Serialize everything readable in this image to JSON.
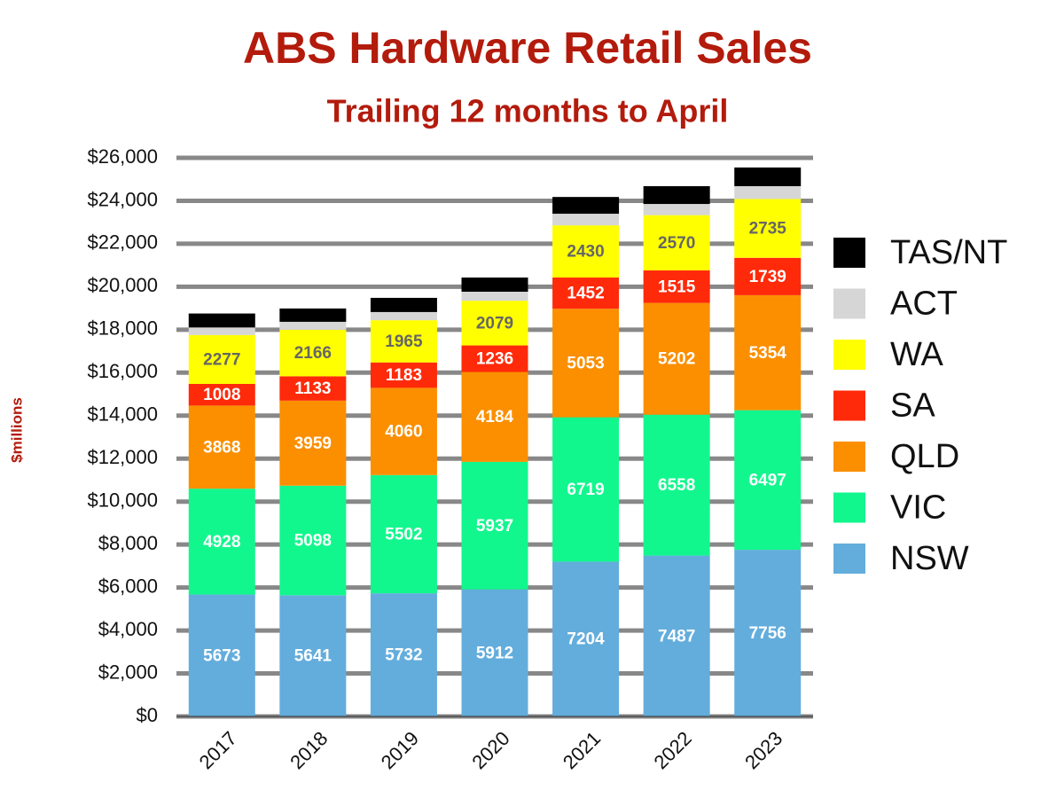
{
  "chart_data": {
    "type": "stacked_bar",
    "title": "ABS Hardware Retail Sales",
    "subtitle": "Trailing 12 months to April",
    "y_label": "$millions",
    "categories": [
      "2017",
      "2018",
      "2019",
      "2020",
      "2021",
      "2022",
      "2023"
    ],
    "series": [
      {
        "name": "NSW",
        "color": "#63addc",
        "data_labels": true,
        "values": [
          5673,
          5641,
          5732,
          5912,
          7204,
          7487,
          7756
        ]
      },
      {
        "name": "VIC",
        "color": "#12f78d",
        "data_labels": true,
        "values": [
          4928,
          5098,
          5502,
          5937,
          6719,
          6558,
          6497
        ]
      },
      {
        "name": "QLD",
        "color": "#fb8f00",
        "data_labels": true,
        "values": [
          3868,
          3959,
          4060,
          4184,
          5053,
          5202,
          5354
        ]
      },
      {
        "name": "SA",
        "color": "#ff2a0a",
        "data_labels": true,
        "values": [
          1008,
          1133,
          1183,
          1236,
          1452,
          1515,
          1739
        ]
      },
      {
        "name": "WA",
        "color": "#ffff00",
        "data_labels": true,
        "values": [
          2277,
          2166,
          1965,
          2079,
          2430,
          2570,
          2735
        ]
      },
      {
        "name": "ACT",
        "color": "#d6d6d6",
        "data_labels": false,
        "values": [
          350,
          370,
          380,
          420,
          540,
          520,
          600
        ]
      },
      {
        "name": "TAS/NT",
        "color": "#000000",
        "data_labels": false,
        "values": [
          650,
          620,
          660,
          660,
          780,
          830,
          870
        ]
      }
    ],
    "ylim": [
      0,
      26000
    ],
    "yticks": [
      {
        "value": 0,
        "label": "$0"
      },
      {
        "value": 2000,
        "label": "$2,000"
      },
      {
        "value": 4000,
        "label": "$4,000"
      },
      {
        "value": 6000,
        "label": "$6,000"
      },
      {
        "value": 8000,
        "label": "$8,000"
      },
      {
        "value": 10000,
        "label": "$10,000"
      },
      {
        "value": 12000,
        "label": "$12,000"
      },
      {
        "value": 14000,
        "label": "$14,000"
      },
      {
        "value": 16000,
        "label": "$16,000"
      },
      {
        "value": 18000,
        "label": "$18,000"
      },
      {
        "value": 20000,
        "label": "$20,000"
      },
      {
        "value": 22000,
        "label": "$22,000"
      },
      {
        "value": 24000,
        "label": "$24,000"
      },
      {
        "value": 26000,
        "label": "$26,000"
      }
    ],
    "grid": true,
    "legend": "right"
  }
}
